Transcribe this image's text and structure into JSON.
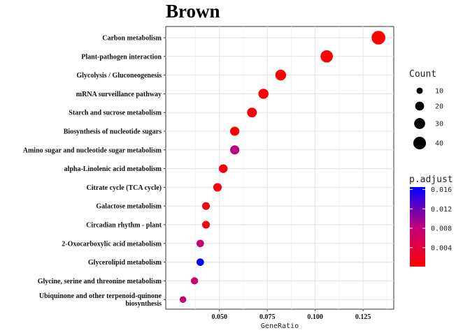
{
  "chart_data": {
    "type": "scatter",
    "title": "Brown",
    "xlabel": "GeneRatio",
    "ylabel": "",
    "xlim": [
      0.022,
      0.141
    ],
    "xticks": [
      0.05,
      0.075,
      0.1,
      0.125
    ],
    "xtick_labels": [
      "0.050",
      "0.075",
      "0.100",
      "0.125"
    ],
    "grid": true,
    "categories": [
      "Carbon metabolism",
      "Plant-pathogen interaction",
      "Glycolysis / Gluconeogenesis",
      "mRNA surveillance pathway",
      "Starch and sucrose metabolism",
      "Biosynthesis of nucleotide sugars",
      "Amino sugar and nucleotide sugar metabolism",
      "alpha-Linolenic acid metabolism",
      "Citrate cycle (TCA cycle)",
      "Galactose metabolism",
      "Circadian rhythm - plant",
      "2-Oxocarboxylic acid metabolism",
      "Glycerolipid metabolism",
      "Glycine, serine and threonine metabolism",
      "Ubiquinone and other terpenoid-quinone biosynthesis"
    ],
    "category_lines": [
      [
        "Carbon metabolism"
      ],
      [
        "Plant-pathogen interaction"
      ],
      [
        "Glycolysis / Gluconeogenesis"
      ],
      [
        "mRNA surveillance pathway"
      ],
      [
        "Starch and sucrose metabolism"
      ],
      [
        "Biosynthesis of nucleotide sugars"
      ],
      [
        "Amino sugar and nucleotide sugar metabolism"
      ],
      [
        "alpha-Linolenic acid metabolism"
      ],
      [
        "Citrate cycle (TCA cycle)"
      ],
      [
        "Galactose metabolism"
      ],
      [
        "Circadian rhythm - plant"
      ],
      [
        "2-Oxocarboxylic acid metabolism"
      ],
      [
        "Glycerolipid metabolism"
      ],
      [
        "Glycine, serine and threonine metabolism"
      ],
      [
        "Ubiquinone and other terpenoid-quinone",
        "biosynthesis"
      ]
    ],
    "gene_ratio": [
      0.133,
      0.106,
      0.082,
      0.073,
      0.067,
      0.058,
      0.058,
      0.052,
      0.049,
      0.043,
      0.043,
      0.04,
      0.04,
      0.037,
      0.031
    ],
    "count": [
      47,
      38,
      29,
      26,
      24,
      21,
      21,
      19,
      18,
      15,
      15,
      14,
      14,
      13,
      11
    ],
    "p_adjust": [
      0.0001,
      0.0002,
      0.0003,
      0.0004,
      0.0005,
      0.0006,
      0.0085,
      0.0008,
      0.0009,
      0.001,
      0.0011,
      0.0075,
      0.0163,
      0.0065,
      0.008
    ],
    "size_legend": {
      "title": "Count",
      "values": [
        10,
        20,
        30,
        40
      ],
      "labels": [
        "10",
        "20",
        "30",
        "40"
      ]
    },
    "color_legend": {
      "title": "p.adjust",
      "range": [
        0.0001,
        0.0165
      ],
      "low_color": "#ff0000",
      "high_color": "#0000ff",
      "ticks": [
        0.004,
        0.008,
        0.012,
        0.016
      ],
      "tick_labels": [
        "0.004",
        "0.008",
        "0.012",
        "0.016"
      ]
    },
    "legend_position": "right"
  }
}
